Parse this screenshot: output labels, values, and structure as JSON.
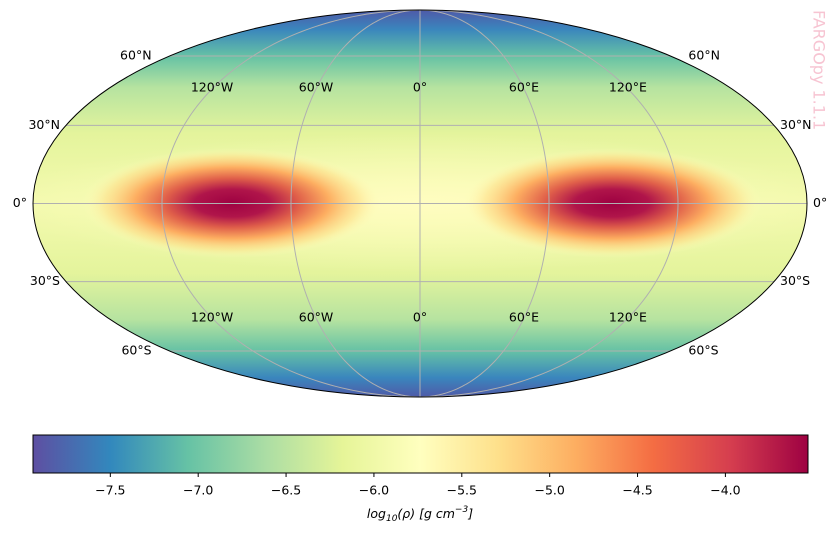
{
  "chart_data": {
    "type": "mollweide",
    "watermark": "FARGOpy 1.1.1",
    "lat_ticks": [
      {
        "value": 60,
        "label": "60°N"
      },
      {
        "value": 30,
        "label": "30°N"
      },
      {
        "value": 0,
        "label": "0°"
      },
      {
        "value": -30,
        "label": "30°S"
      },
      {
        "value": -60,
        "label": "60°S"
      }
    ],
    "lon_ticks": [
      {
        "value": -120,
        "label": "120°W"
      },
      {
        "value": -60,
        "label": "60°W"
      },
      {
        "value": 0,
        "label": "0°"
      },
      {
        "value": 60,
        "label": "60°E"
      },
      {
        "value": 120,
        "label": "120°E"
      }
    ],
    "grid": true,
    "colormap": [
      "#5e4fa2",
      "#3288bd",
      "#66c2a5",
      "#abdda4",
      "#e6f598",
      "#ffffbf",
      "#fee08b",
      "#fdae61",
      "#f46d43",
      "#d53e4f",
      "#9e0142"
    ],
    "colorbar": {
      "clim": [
        -7.94,
        -3.53
      ],
      "ticks": [
        {
          "value": -7.5,
          "label": "−7.5"
        },
        {
          "value": -7.0,
          "label": "−7.0"
        },
        {
          "value": -6.5,
          "label": "−6.5"
        },
        {
          "value": -6.0,
          "label": "−6.0"
        },
        {
          "value": -5.5,
          "label": "−5.5"
        },
        {
          "value": -5.0,
          "label": "−5.0"
        },
        {
          "value": -4.5,
          "label": "−4.5"
        },
        {
          "value": -4.0,
          "label": "−4.0"
        }
      ],
      "label": {
        "base": "log",
        "sub": "10",
        "middle": "(ρ) [g cm",
        "sup": "−3",
        "end": "]"
      }
    }
  }
}
